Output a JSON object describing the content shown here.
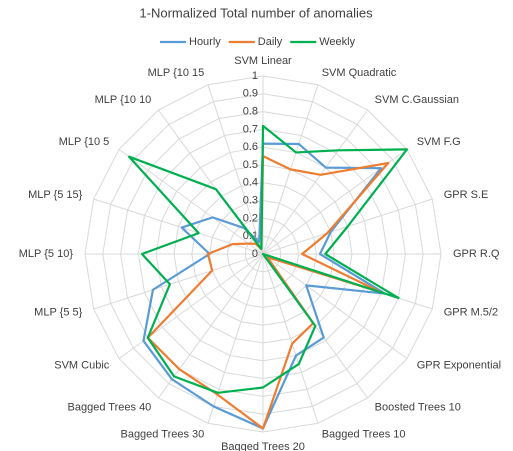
{
  "chart_data": {
    "type": "radar",
    "title": "1-Normalized Total number of anomalies",
    "categories": [
      "SVM Linear",
      "SVM Quadratic",
      "SVM C.Gaussian",
      "SVM F.G",
      "GPR S.E",
      "GPR R.Q",
      "GPR M.5/2",
      "GPR Exponential",
      "Boosted Trees 10",
      "Bagged Trees 10",
      "Bagged Trees 20",
      "Bagged Trees 30",
      "Bagged Trees 40",
      "SVM Cubic",
      "MLP {5  5}",
      "MLP  {5 10}",
      "MLP {5 15}",
      "MLP {10  5",
      "MLP {10 10",
      "MLP {10 15"
    ],
    "series": [
      {
        "name": "Hourly",
        "color": "#5b9bd5",
        "values": [
          0.62,
          0.65,
          0.6,
          0.82,
          0.4,
          0.32,
          0.72,
          0.3,
          0.58,
          0.6,
          0.98,
          0.9,
          0.87,
          0.83,
          0.65,
          0.3,
          0.48,
          0.35,
          0.18,
          0.07
        ]
      },
      {
        "name": "Daily",
        "color": "#ed7d31",
        "values": [
          0.55,
          0.5,
          0.55,
          0.87,
          0.38,
          0.22,
          0.7,
          0.03,
          0.48,
          0.53,
          0.98,
          0.83,
          0.8,
          0.8,
          0.3,
          0.31,
          0.18,
          0.1,
          0.07,
          0.03
        ]
      },
      {
        "name": "Weekly",
        "color": "#00b050",
        "values": [
          0.72,
          0.6,
          0.72,
          1.0,
          0.5,
          0.35,
          0.8,
          0.0,
          0.5,
          0.65,
          0.75,
          0.82,
          0.85,
          0.8,
          0.55,
          0.68,
          0.38,
          0.93,
          0.45,
          0.03
        ]
      }
    ],
    "ylim": [
      0,
      1
    ],
    "yticks": [
      0,
      0.1,
      0.2,
      0.3,
      0.4,
      0.5,
      0.6,
      0.7,
      0.8,
      0.9,
      1
    ],
    "grid": true,
    "legend": "top"
  }
}
